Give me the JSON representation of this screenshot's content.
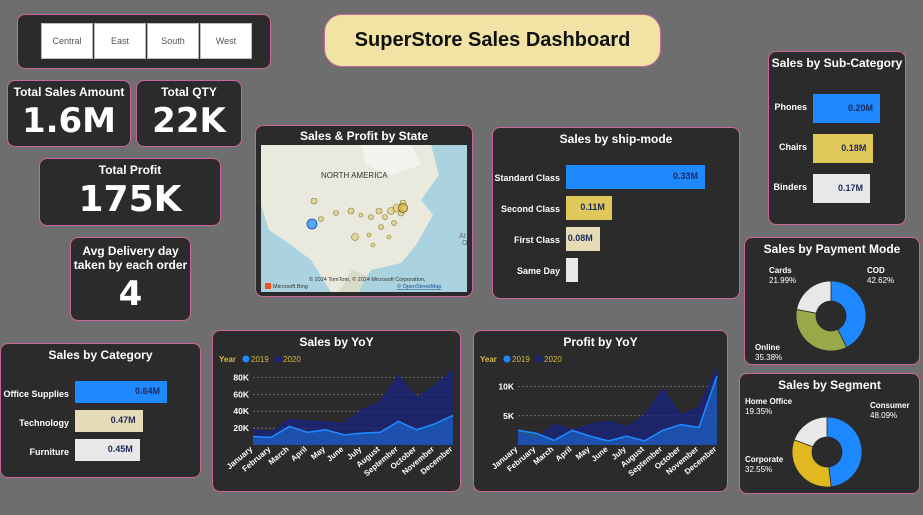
{
  "title": "SuperStore Sales Dashboard",
  "slicer": [
    "Central",
    "East",
    "South",
    "West"
  ],
  "kpis": {
    "total_sales": {
      "label": "Total Sales Amount",
      "value": "1.6M"
    },
    "total_qty": {
      "label": "Total QTY",
      "value": "22K"
    },
    "total_profit": {
      "label": "Total Profit",
      "value": "175K"
    },
    "avg_delivery": {
      "label_line1": "Avg Delivery day",
      "label_line2": "taken by each order",
      "value": "4"
    }
  },
  "map": {
    "title": "Sales & Profit by State",
    "region_label": "NORTH AMERICA",
    "attribution": "© 2024 TomTom, © 2024 Microsoft Corporation,",
    "attribution_link": "© OpenStreetMap",
    "brand": "Microsoft Bing",
    "edge_label": "At",
    "edge_label2": "O"
  },
  "ship_mode": {
    "title": "Sales by ship-mode",
    "items": [
      {
        "label": "Standard Class",
        "value": 0.33,
        "display": "0.33M",
        "color": "#1e88ff"
      },
      {
        "label": "Second Class",
        "value": 0.11,
        "display": "0.11M",
        "color": "#e0c85a"
      },
      {
        "label": "First Class",
        "value": 0.08,
        "display": "0.08M",
        "color": "#e6ddb8"
      },
      {
        "label": "Same Day",
        "value": 0.02,
        "display": "",
        "color": "#e8e8e8"
      }
    ]
  },
  "sub_category": {
    "title": "Sales by Sub-Category",
    "items": [
      {
        "label": "Phones",
        "value": 0.2,
        "display": "0.20M",
        "color": "#1e88ff"
      },
      {
        "label": "Chairs",
        "value": 0.18,
        "display": "0.18M",
        "color": "#e0c85a"
      },
      {
        "label": "Binders",
        "value": 0.17,
        "display": "0.17M",
        "color": "#e8e8e8"
      }
    ]
  },
  "category": {
    "title": "Sales by Category",
    "items": [
      {
        "label": "Office Supplies",
        "value": 0.64,
        "display": "0.64M",
        "color": "#1e88ff"
      },
      {
        "label": "Technology",
        "value": 0.47,
        "display": "0.47M",
        "color": "#e6ddb8"
      },
      {
        "label": "Furniture",
        "value": 0.45,
        "display": "0.45M",
        "color": "#e8e8e8"
      }
    ]
  },
  "payment": {
    "title": "Sales by Payment Mode",
    "slices": [
      {
        "label": "COD",
        "pct": "42.62%",
        "value": 42.62,
        "color": "#1e88ff"
      },
      {
        "label": "Online",
        "pct": "35.38%",
        "value": 35.38,
        "color": "#9aa84a"
      },
      {
        "label": "Cards",
        "pct": "21.99%",
        "value": 21.99,
        "color": "#e8e8e8"
      }
    ]
  },
  "segment": {
    "title": "Sales by Segment",
    "slices": [
      {
        "label": "Consumer",
        "pct": "48.09%",
        "value": 48.09,
        "color": "#1e88ff"
      },
      {
        "label": "Corporate",
        "pct": "32.55%",
        "value": 32.55,
        "color": "#e0b820"
      },
      {
        "label": "Home Office",
        "pct": "19.35%",
        "value": 19.35,
        "color": "#e8e8e8"
      }
    ]
  },
  "legend": {
    "prefix": "Year",
    "series": [
      "2019",
      "2020"
    ],
    "colors": [
      "#1e88ff",
      "#1a237e"
    ]
  },
  "chart_data": [
    {
      "type": "area",
      "title": "Sales by YoY",
      "categories": [
        "January",
        "February",
        "March",
        "April",
        "May",
        "June",
        "July",
        "August",
        "September",
        "October",
        "November",
        "December"
      ],
      "yticks": [
        "80K",
        "60K",
        "40K",
        "20K"
      ],
      "ylim": [
        0,
        90000
      ],
      "series": [
        {
          "name": "2019",
          "values": [
            10000,
            9000,
            22000,
            15000,
            18000,
            12000,
            14000,
            15000,
            28000,
            18000,
            25000,
            35000
          ]
        },
        {
          "name": "2020",
          "values": [
            18000,
            15000,
            30000,
            28000,
            27000,
            25000,
            42000,
            50000,
            82000,
            55000,
            70000,
            88000
          ]
        }
      ]
    },
    {
      "type": "area",
      "title": "Profit by YoY",
      "categories": [
        "January",
        "February",
        "March",
        "April",
        "May",
        "June",
        "July",
        "August",
        "September",
        "October",
        "November",
        "December"
      ],
      "yticks": [
        "10K",
        "5K"
      ],
      "ylim": [
        0,
        13000
      ],
      "series": [
        {
          "name": "2019",
          "values": [
            2500,
            2000,
            800,
            2500,
            1500,
            700,
            1500,
            700,
            2500,
            3500,
            3000,
            11800
          ]
        },
        {
          "name": "2020",
          "values": [
            2000,
            1000,
            3500,
            2500,
            3500,
            4000,
            3000,
            5000,
            9500,
            5000,
            6500,
            13000
          ]
        }
      ]
    }
  ]
}
